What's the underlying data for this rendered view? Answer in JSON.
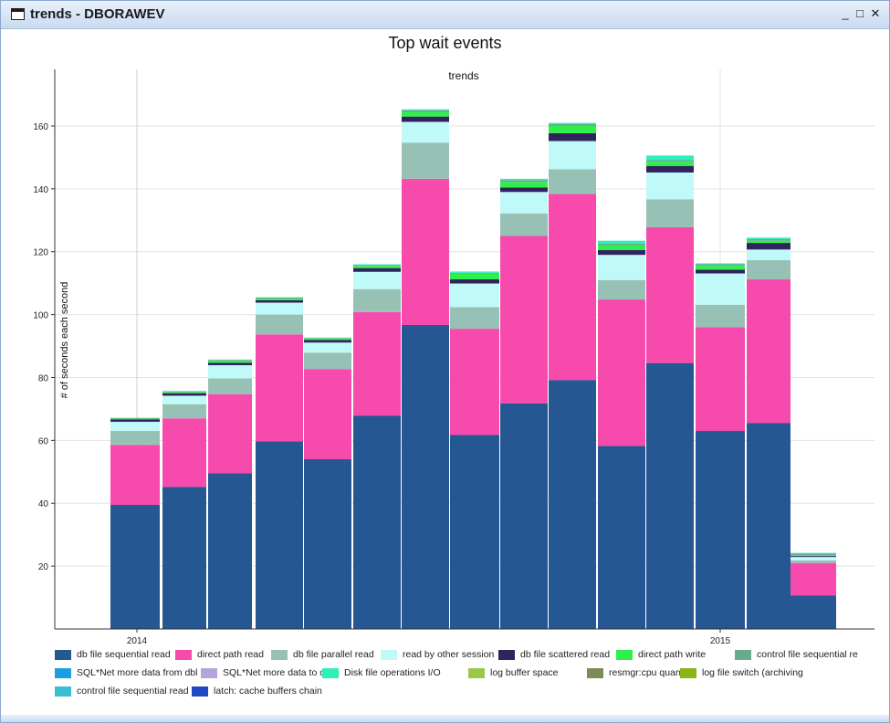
{
  "window": {
    "title": "trends - DBORAWEV",
    "minimize": "_",
    "maximize": "□",
    "close": "✕"
  },
  "chart_data": {
    "type": "bar",
    "stacked": true,
    "title": "Top wait events",
    "subtitle": "trends",
    "xlabel": "",
    "ylabel": "# of seconds each second",
    "ylim": [
      0,
      178
    ],
    "yticks": [
      20,
      40,
      60,
      80,
      100,
      120,
      140,
      160
    ],
    "xticks": [
      "2014",
      "2015"
    ],
    "grid": true,
    "legend_position": "bottom",
    "categories": [
      "1",
      "2",
      "3",
      "4",
      "5",
      "6",
      "7",
      "8",
      "9",
      "10",
      "11",
      "12",
      "13",
      "14",
      "15",
      "16"
    ],
    "series": [
      {
        "name": "db file sequential read",
        "color": "#255792",
        "values": [
          39.5,
          45.2,
          49.5,
          59.7,
          54,
          67.8,
          96.7,
          61.7,
          71.8,
          79.2,
          58.2,
          84.6,
          63,
          65.5,
          10.7,
          0
        ]
      },
      {
        "name": "direct path read",
        "color": "#f74aad",
        "values": [
          19,
          21.8,
          25.2,
          34,
          28.7,
          33,
          46.5,
          33.8,
          53.2,
          59.2,
          46.6,
          43.2,
          33,
          45.7,
          10.3,
          0
        ]
      },
      {
        "name": "db file parallel read",
        "color": "#98c1b5",
        "values": [
          4.5,
          4.5,
          5,
          6.3,
          5.2,
          7.3,
          11.5,
          6.9,
          7.2,
          7.8,
          6.2,
          8.9,
          7.1,
          6.1,
          0.8,
          0
        ]
      },
      {
        "name": "read by other session",
        "color": "#bff9f8",
        "values": [
          2.9,
          2.7,
          4.2,
          3.8,
          3.2,
          5.5,
          6.6,
          7.5,
          6.8,
          9,
          8,
          8.5,
          10,
          3.4,
          1.1,
          0
        ]
      },
      {
        "name": "db file scattered read",
        "color": "#30235e",
        "values": [
          0.8,
          0.8,
          0.8,
          0.8,
          0.8,
          1.2,
          1.7,
          1.3,
          1.4,
          2.5,
          1.5,
          2.1,
          1.2,
          2.1,
          0.3,
          0
        ]
      },
      {
        "name": "direct path write",
        "color": "#2ff04a",
        "values": [
          0.2,
          0.3,
          0.6,
          0.5,
          0.5,
          0.7,
          1.5,
          1.8,
          1.8,
          2.3,
          1.6,
          1.3,
          1.2,
          0.7,
          0.3,
          0
        ]
      },
      {
        "name": "control file sequential re",
        "color": "#69a98d",
        "values": [
          0.2,
          0.3,
          0.3,
          0.3,
          0.2,
          0.3,
          0.5,
          0.3,
          0.6,
          0.6,
          0.5,
          0.5,
          0.5,
          0.5,
          0.5,
          0
        ]
      },
      {
        "name": "SQL*Net more data from dbl",
        "color": "#1c9de4",
        "values": [
          0,
          0,
          0,
          0,
          0,
          0,
          0,
          0,
          0,
          0,
          0,
          0,
          0,
          0,
          0,
          0
        ]
      },
      {
        "name": "SQL*Net more data to clien",
        "color": "#b7a3dc",
        "values": [
          0,
          0,
          0,
          0,
          0,
          0,
          0,
          0,
          0,
          0,
          0,
          0,
          0,
          0,
          0,
          0
        ]
      },
      {
        "name": "Disk file operations I/O",
        "color": "#2ff0bd",
        "values": [
          0.1,
          0.1,
          0.1,
          0.1,
          0.1,
          0.2,
          0.3,
          0.4,
          0.4,
          0.4,
          0.9,
          1.5,
          0.3,
          0.5,
          0.2,
          0
        ]
      },
      {
        "name": "log buffer space",
        "color": "#9bc84b",
        "values": [
          0,
          0,
          0,
          0,
          0,
          0,
          0,
          0,
          0,
          0,
          0,
          0,
          0,
          0,
          0,
          0
        ]
      },
      {
        "name": "resmgr:cpu quantum",
        "color": "#7d8b58",
        "values": [
          0,
          0,
          0,
          0,
          0,
          0,
          0,
          0,
          0,
          0,
          0,
          0,
          0,
          0,
          0,
          0
        ]
      },
      {
        "name": "log file switch (archiving",
        "color": "#8ab514",
        "values": [
          0,
          0,
          0,
          0,
          0,
          0,
          0,
          0,
          0,
          0,
          0,
          0,
          0,
          0,
          0,
          0
        ]
      },
      {
        "name": "control file sequential read",
        "color": "#37bed1",
        "values": [
          0,
          0,
          0,
          0,
          0,
          0,
          0,
          0,
          0,
          0,
          0,
          0,
          0,
          0,
          0,
          0
        ]
      },
      {
        "name": "latch: cache buffers chain",
        "color": "#1e49c2",
        "values": [
          0,
          0,
          0,
          0,
          0,
          0,
          0,
          0,
          0,
          0,
          0,
          0,
          0,
          0,
          0,
          0
        ]
      }
    ]
  }
}
